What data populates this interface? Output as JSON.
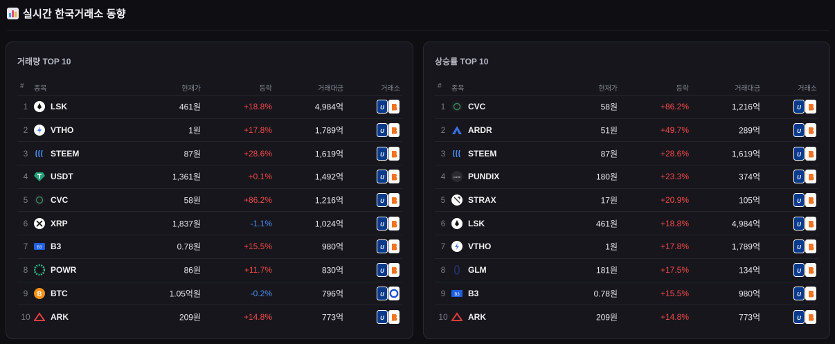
{
  "header": {
    "icon": "bar-chart-icon",
    "title": "실시간 한국거래소 동향"
  },
  "columns": {
    "rank": "#",
    "name": "종목",
    "price": "현재가",
    "change": "등락",
    "volume": "거래대금",
    "exchange": "거래소"
  },
  "colors": {
    "up": "#f04a4a",
    "down": "#4c8ef0",
    "upbit": "#0a3a8c",
    "bithumb": "#f37321"
  },
  "volume_panel": {
    "title": "거래량 TOP 10",
    "rows": [
      {
        "rank": "1",
        "symbol": "LSK",
        "icon": "lsk-icon",
        "price": "461원",
        "change": "+18.8%",
        "dir": "up",
        "volume": "4,984억",
        "exchanges": [
          "upbit",
          "bithumb"
        ]
      },
      {
        "rank": "2",
        "symbol": "VTHO",
        "icon": "vtho-icon",
        "price": "1원",
        "change": "+17.8%",
        "dir": "up",
        "volume": "1,789억",
        "exchanges": [
          "upbit",
          "bithumb"
        ]
      },
      {
        "rank": "3",
        "symbol": "STEEM",
        "icon": "steem-icon",
        "price": "87원",
        "change": "+28.6%",
        "dir": "up",
        "volume": "1,619억",
        "exchanges": [
          "upbit",
          "bithumb"
        ]
      },
      {
        "rank": "4",
        "symbol": "USDT",
        "icon": "usdt-icon",
        "price": "1,361원",
        "change": "+0.1%",
        "dir": "up",
        "volume": "1,492억",
        "exchanges": [
          "upbit",
          "bithumb"
        ]
      },
      {
        "rank": "5",
        "symbol": "CVC",
        "icon": "cvc-icon",
        "price": "58원",
        "change": "+86.2%",
        "dir": "up",
        "volume": "1,216억",
        "exchanges": [
          "upbit",
          "bithumb"
        ]
      },
      {
        "rank": "6",
        "symbol": "XRP",
        "icon": "xrp-icon",
        "price": "1,837원",
        "change": "-1.1%",
        "dir": "down",
        "volume": "1,024억",
        "exchanges": [
          "upbit",
          "bithumb"
        ]
      },
      {
        "rank": "7",
        "symbol": "B3",
        "icon": "b3-icon",
        "price": "0.78원",
        "change": "+15.5%",
        "dir": "up",
        "volume": "980억",
        "exchanges": [
          "upbit",
          "bithumb"
        ]
      },
      {
        "rank": "8",
        "symbol": "POWR",
        "icon": "powr-icon",
        "price": "86원",
        "change": "+11.7%",
        "dir": "up",
        "volume": "830억",
        "exchanges": [
          "upbit",
          "bithumb"
        ]
      },
      {
        "rank": "9",
        "symbol": "BTC",
        "icon": "btc-icon",
        "price": "1.05억원",
        "change": "-0.2%",
        "dir": "down",
        "volume": "796억",
        "exchanges": [
          "upbit",
          "coinone"
        ]
      },
      {
        "rank": "10",
        "symbol": "ARK",
        "icon": "ark-icon",
        "price": "209원",
        "change": "+14.8%",
        "dir": "up",
        "volume": "773억",
        "exchanges": [
          "upbit",
          "bithumb"
        ]
      }
    ]
  },
  "gainers_panel": {
    "title": "상승률 TOP 10",
    "rows": [
      {
        "rank": "1",
        "symbol": "CVC",
        "icon": "cvc-icon",
        "price": "58원",
        "change": "+86.2%",
        "dir": "up",
        "volume": "1,216억",
        "exchanges": [
          "upbit",
          "bithumb"
        ]
      },
      {
        "rank": "2",
        "symbol": "ARDR",
        "icon": "ardr-icon",
        "price": "51원",
        "change": "+49.7%",
        "dir": "up",
        "volume": "289억",
        "exchanges": [
          "upbit",
          "bithumb"
        ]
      },
      {
        "rank": "3",
        "symbol": "STEEM",
        "icon": "steem-icon",
        "price": "87원",
        "change": "+28.6%",
        "dir": "up",
        "volume": "1,619억",
        "exchanges": [
          "upbit",
          "bithumb"
        ]
      },
      {
        "rank": "4",
        "symbol": "PUNDIX",
        "icon": "pundix-icon",
        "price": "180원",
        "change": "+23.3%",
        "dir": "up",
        "volume": "374억",
        "exchanges": [
          "upbit",
          "bithumb"
        ]
      },
      {
        "rank": "5",
        "symbol": "STRAX",
        "icon": "strax-icon",
        "price": "17원",
        "change": "+20.9%",
        "dir": "up",
        "volume": "105억",
        "exchanges": [
          "upbit",
          "bithumb"
        ]
      },
      {
        "rank": "6",
        "symbol": "LSK",
        "icon": "lsk-icon",
        "price": "461원",
        "change": "+18.8%",
        "dir": "up",
        "volume": "4,984억",
        "exchanges": [
          "upbit",
          "bithumb"
        ]
      },
      {
        "rank": "7",
        "symbol": "VTHO",
        "icon": "vtho-icon",
        "price": "1원",
        "change": "+17.8%",
        "dir": "up",
        "volume": "1,789억",
        "exchanges": [
          "upbit",
          "bithumb"
        ]
      },
      {
        "rank": "8",
        "symbol": "GLM",
        "icon": "glm-icon",
        "price": "181원",
        "change": "+17.5%",
        "dir": "up",
        "volume": "134억",
        "exchanges": [
          "upbit",
          "bithumb"
        ]
      },
      {
        "rank": "9",
        "symbol": "B3",
        "icon": "b3-icon",
        "price": "0.78원",
        "change": "+15.5%",
        "dir": "up",
        "volume": "980억",
        "exchanges": [
          "upbit",
          "bithumb"
        ]
      },
      {
        "rank": "10",
        "symbol": "ARK",
        "icon": "ark-icon",
        "price": "209원",
        "change": "+14.8%",
        "dir": "up",
        "volume": "773억",
        "exchanges": [
          "upbit",
          "bithumb"
        ]
      }
    ]
  }
}
